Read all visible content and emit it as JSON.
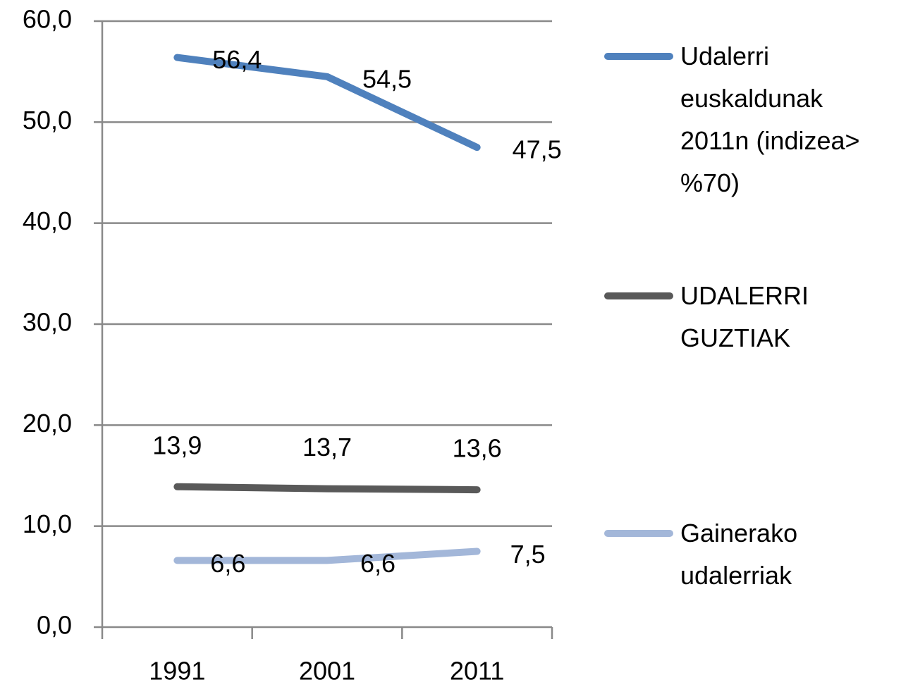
{
  "chart_data": {
    "type": "line",
    "categories": [
      "1991",
      "2001",
      "2011"
    ],
    "series": [
      {
        "name": "Udalerri euskaldunak 2011n (indizea> %70)",
        "color": "#4f81bd",
        "values": [
          56.4,
          54.5,
          47.5
        ],
        "value_labels": [
          "56,4",
          "54,5",
          "47,5"
        ]
      },
      {
        "name": "UDALERRI GUZTIAK",
        "color": "#595959",
        "values": [
          13.9,
          13.7,
          13.6
        ],
        "value_labels": [
          "13,9",
          "13,7",
          "13,6"
        ]
      },
      {
        "name": "Gainerako udalerriak",
        "color": "#a3b7d9",
        "values": [
          6.6,
          6.6,
          7.5
        ],
        "value_labels": [
          "6,6",
          "6,6",
          "7,5"
        ]
      }
    ],
    "ylim": [
      0,
      60
    ],
    "yticks": [
      {
        "value": 0,
        "label": "0,0"
      },
      {
        "value": 10,
        "label": "10,0"
      },
      {
        "value": 20,
        "label": "20,0"
      },
      {
        "value": 30,
        "label": "30,0"
      },
      {
        "value": 40,
        "label": "40,0"
      },
      {
        "value": 50,
        "label": "50,0"
      },
      {
        "value": 60,
        "label": "60,0"
      }
    ],
    "grid": true,
    "legend": "right"
  }
}
